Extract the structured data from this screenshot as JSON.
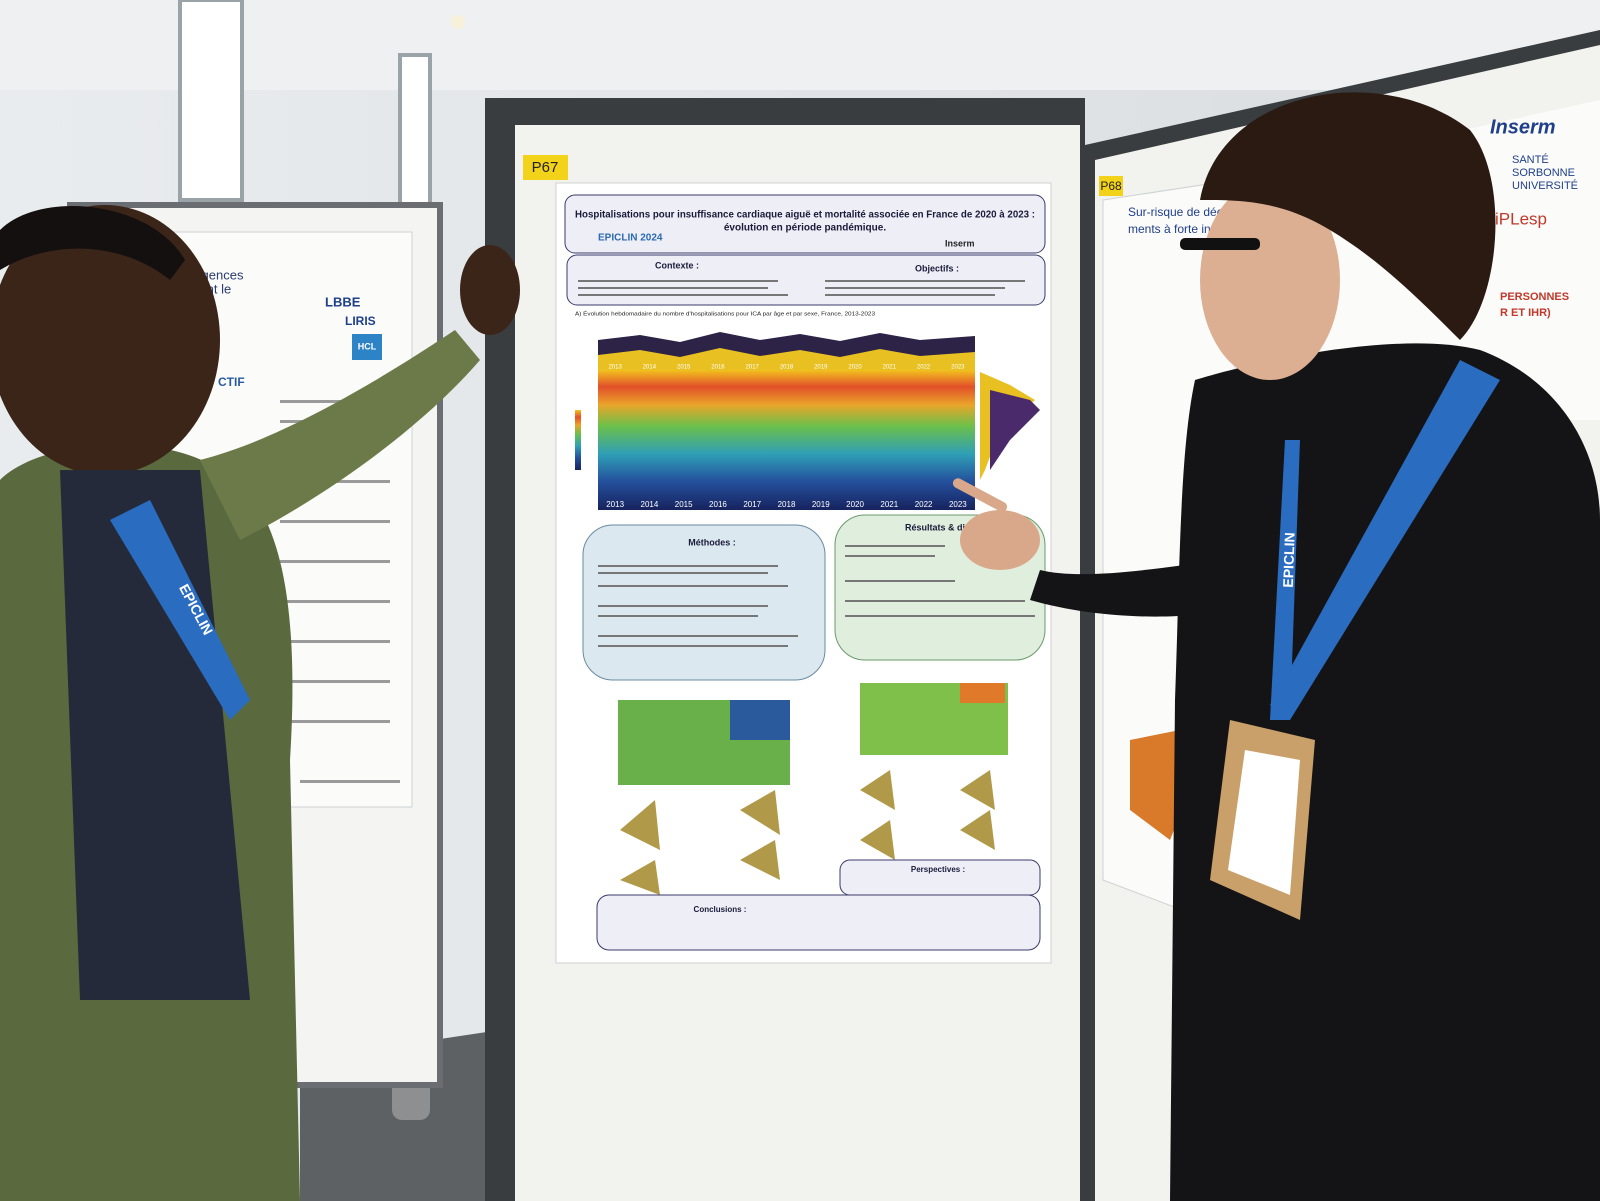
{
  "poster_left": {
    "heading_1": "urgences",
    "heading_2": "isant le",
    "logo_1": "LBBE",
    "logo_2": "LIRIS",
    "logo_3": "HCL",
    "section": "CTIF"
  },
  "poster_center": {
    "number": "P67",
    "title_line_1": "Hospitalisations pour insuffisance cardiaque aiguë et mortalité associée en France de 2020 à 2023 :",
    "title_line_2": "évolution en période pandémique.",
    "conference": "EPICLIN 2024",
    "logo": "Inserm",
    "contexte": "Contexte :",
    "objectifs": "Objectifs :",
    "figure_a": "A) Évolution hebdomadaire du nombre d'hospitalisations pour ICA par âge et par sexe, France, 2013-2023",
    "years": [
      "2013",
      "2014",
      "2015",
      "2016",
      "2017",
      "2018",
      "2019",
      "2020",
      "2021",
      "2022",
      "2023"
    ],
    "methodes": "Méthodes :",
    "resultats": "Résultats & di",
    "perspectives": "Perspectives :",
    "conclusions": "Conclusions :"
  },
  "poster_right": {
    "number": "P68",
    "title_line_1": "Sur-risque de décè",
    "title_line_2": "ments à forte incid",
    "logo_1": "Inserm",
    "logo_2": "SANTÉ",
    "logo_3": "SORBONNE",
    "logo_4": "UNIVERSITÉ",
    "logo_5": "iPLesp",
    "heading": "PERSONNES",
    "heading_2": "R ET IHR)"
  },
  "lanyards": {
    "left": "EPICLIN",
    "right": "EPICLIN"
  }
}
